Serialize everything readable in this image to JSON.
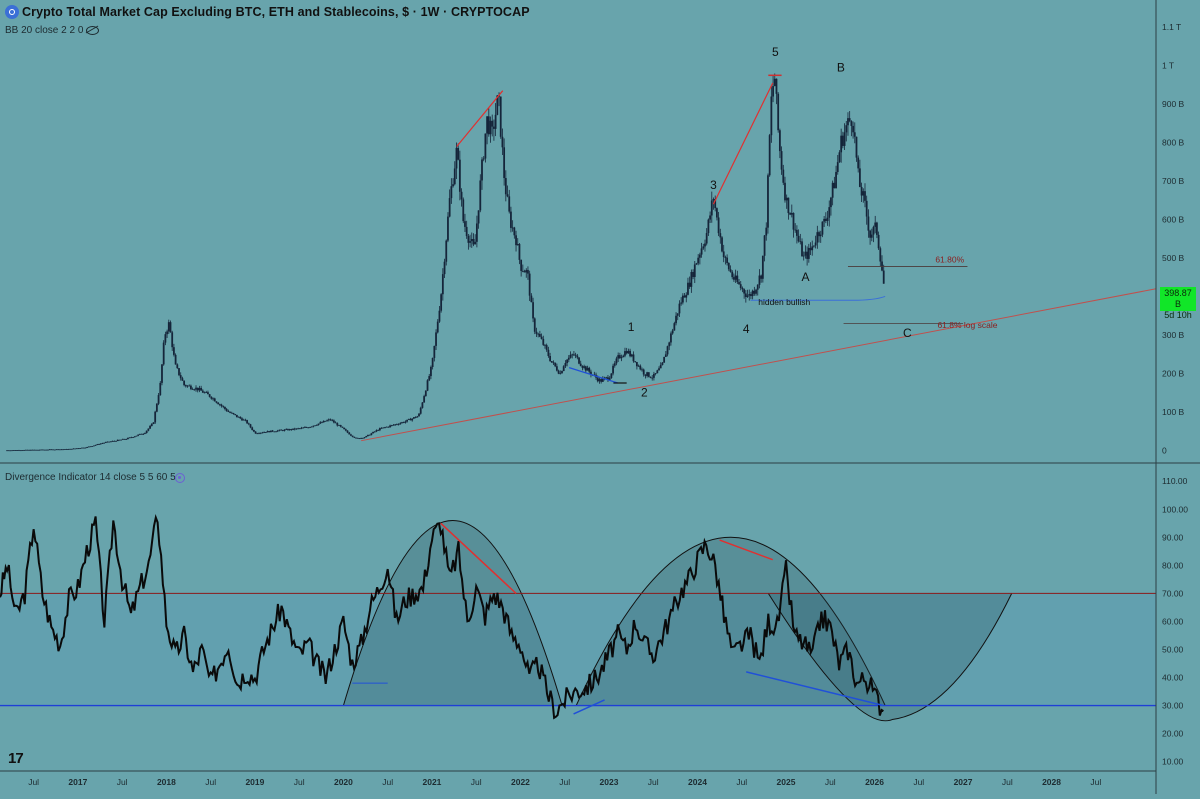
{
  "header": {
    "title": "Crypto Total Market Cap Excluding BTC, ETH and Stablecoins, $ · 1W · CRYPTOCAP",
    "indicator_label": "BB 20 close 2 2 0",
    "oscillator_label": "Divergence Indicator 14 close 5 5 60 5",
    "tv_logo": "17"
  },
  "colors": {
    "background": "#68a4ac",
    "candle": "#15253a",
    "trend_line": "#c0504d",
    "divergence_red": "#e03030",
    "divergence_blue": "#2050d8",
    "hline_red": "#8b1a1a",
    "hline_blue": "#1f3fd6",
    "price_tag": "#11e628"
  },
  "price_tag": {
    "value": "398.87 B",
    "countdown": "5d 10h"
  },
  "chart_data": [
    {
      "type": "candlestick",
      "title": "Crypto Total Market Cap Excluding BTC, ETH and Stablecoins, $ · 1W · CRYPTOCAP",
      "ylabel": "",
      "y_ticks": [
        "0",
        "100 B",
        "200 B",
        "300 B",
        "400 B",
        "500 B",
        "600 B",
        "700 B",
        "800 B",
        "900 B",
        "1 T",
        "1.1 T"
      ],
      "y_ticks_value": [
        0,
        100,
        200,
        300,
        400,
        500,
        600,
        700,
        800,
        900,
        1000,
        1100
      ],
      "ylim": [
        -20,
        1150
      ],
      "x_ticks": [
        "Jul",
        "2017",
        "Jul",
        "2018",
        "Jul",
        "2019",
        "Jul",
        "2020",
        "Jul",
        "2021",
        "Jul",
        "2022",
        "Jul",
        "2023",
        "Jul",
        "2024",
        "Jul",
        "2025",
        "Jul",
        "2026",
        "Jul",
        "2027",
        "Jul",
        "2028",
        "Jul"
      ],
      "x_ticks_value": [
        2016.5,
        2017,
        2017.5,
        2018,
        2018.5,
        2019,
        2019.5,
        2020,
        2020.5,
        2021,
        2021.5,
        2022,
        2022.5,
        2023,
        2023.5,
        2024,
        2024.5,
        2025,
        2025.5,
        2026,
        2026.5,
        2027,
        2027.5,
        2028,
        2028.5
      ],
      "xlim": [
        2016.12,
        2029.18
      ],
      "series": [
        {
          "values_x": [
            2016.2,
            2016.5,
            2016.9,
            2017.1,
            2017.3,
            2017.55,
            2017.75,
            2017.85,
            2017.93,
            2017.98,
            2018.03,
            2018.1,
            2018.2,
            2018.35,
            2018.5,
            2018.7,
            2018.9,
            2019.0,
            2019.2,
            2019.45,
            2019.6,
            2019.85,
            2020.0,
            2020.08,
            2020.15,
            2020.25,
            2020.4,
            2020.55,
            2020.7,
            2020.85,
            2021.0,
            2021.1,
            2021.2,
            2021.28,
            2021.35,
            2021.42,
            2021.48,
            2021.55,
            2021.62,
            2021.68,
            2021.75,
            2021.82,
            2021.88,
            2021.95,
            2022.0,
            2022.08,
            2022.15,
            2022.25,
            2022.35,
            2022.45,
            2022.5,
            2022.6,
            2022.7,
            2022.8,
            2022.9,
            2023.0,
            2023.1,
            2023.2,
            2023.3,
            2023.4,
            2023.5,
            2023.6,
            2023.7,
            2023.8,
            2023.9,
            2024.0,
            2024.1,
            2024.18,
            2024.22,
            2024.3,
            2024.4,
            2024.5,
            2024.58,
            2024.65,
            2024.72,
            2024.78,
            2024.83,
            2024.87,
            2024.92,
            2024.96,
            2025.0,
            2025.05,
            2025.12,
            2025.2,
            2025.28,
            2025.35,
            2025.45,
            2025.55,
            2025.62,
            2025.68,
            2025.75,
            2025.82,
            2025.88,
            2025.95,
            2026.02,
            2026.08,
            2026.12
          ],
          "values": [
            0,
            1,
            3,
            8,
            20,
            30,
            45,
            70,
            170,
            300,
            330,
            220,
            170,
            160,
            140,
            100,
            75,
            45,
            50,
            55,
            60,
            80,
            55,
            40,
            30,
            35,
            55,
            65,
            75,
            90,
            220,
            400,
            650,
            780,
            600,
            550,
            520,
            700,
            860,
            820,
            920,
            700,
            600,
            550,
            480,
            460,
            320,
            280,
            230,
            200,
            230,
            250,
            220,
            200,
            180,
            190,
            240,
            260,
            230,
            200,
            190,
            220,
            300,
            380,
            430,
            500,
            560,
            660,
            600,
            500,
            450,
            420,
            400,
            420,
            460,
            600,
            900,
            980,
            800,
            720,
            650,
            620,
            560,
            500,
            520,
            560,
            600,
            700,
            800,
            840,
            870,
            700,
            650,
            560,
            580,
            480,
            400
          ],
          "name": ""
        }
      ],
      "annotations": [
        "1",
        "2",
        "3",
        "4",
        "5",
        "A",
        "B",
        "C",
        "61.80%",
        "61.8% log scale",
        "hidden bullish"
      ]
    },
    {
      "type": "line",
      "title": "Divergence Indicator 14 close 5 5 60 5",
      "y_ticks": [
        "10.00",
        "20.00",
        "30.00",
        "40.00",
        "50.00",
        "60.00",
        "70.00",
        "80.00",
        "90.00",
        "100.00",
        "110.00"
      ],
      "y_ticks_value": [
        10,
        20,
        30,
        40,
        50,
        60,
        70,
        80,
        90,
        100,
        110
      ],
      "ylim": [
        7,
        114
      ],
      "hlines": [
        70,
        30
      ],
      "series": [
        {
          "name": "",
          "x": [
            2016.12,
            2016.2,
            2016.3,
            2016.4,
            2016.5,
            2016.6,
            2016.7,
            2016.8,
            2016.9,
            2017.0,
            2017.1,
            2017.2,
            2017.3,
            2017.4,
            2017.5,
            2017.6,
            2017.7,
            2017.8,
            2017.9,
            2018.0,
            2018.1,
            2018.2,
            2018.3,
            2018.4,
            2018.5,
            2018.6,
            2018.7,
            2018.8,
            2018.9,
            2019.0,
            2019.1,
            2019.2,
            2019.3,
            2019.4,
            2019.5,
            2019.6,
            2019.7,
            2019.8,
            2019.9,
            2020.0,
            2020.1,
            2020.2,
            2020.3,
            2020.4,
            2020.5,
            2020.6,
            2020.7,
            2020.8,
            2020.9,
            2021.0,
            2021.1,
            2021.2,
            2021.3,
            2021.4,
            2021.5,
            2021.6,
            2021.7,
            2021.8,
            2021.9,
            2022.0,
            2022.1,
            2022.2,
            2022.3,
            2022.4,
            2022.5,
            2022.6,
            2022.7,
            2022.8,
            2022.9,
            2023.0,
            2023.1,
            2023.2,
            2023.3,
            2023.4,
            2023.5,
            2023.6,
            2023.7,
            2023.8,
            2023.9,
            2024.0,
            2024.1,
            2024.2,
            2024.3,
            2024.4,
            2024.5,
            2024.6,
            2024.7,
            2024.8,
            2024.9,
            2025.0,
            2025.1,
            2025.2,
            2025.3,
            2025.4,
            2025.5,
            2025.6,
            2025.7,
            2025.8,
            2025.9,
            2026.0,
            2026.1
          ],
          "values": [
            70,
            80,
            62,
            70,
            95,
            70,
            58,
            52,
            68,
            72,
            85,
            95,
            60,
            96,
            75,
            62,
            72,
            80,
            98,
            60,
            48,
            55,
            42,
            50,
            38,
            45,
            52,
            38,
            42,
            40,
            50,
            58,
            65,
            55,
            48,
            52,
            45,
            40,
            50,
            60,
            45,
            52,
            65,
            72,
            80,
            60,
            68,
            70,
            72,
            90,
            95,
            75,
            85,
            60,
            72,
            62,
            70,
            65,
            55,
            52,
            40,
            45,
            35,
            28,
            32,
            35,
            36,
            38,
            42,
            48,
            55,
            50,
            60,
            52,
            48,
            55,
            62,
            70,
            75,
            82,
            88,
            80,
            62,
            48,
            52,
            55,
            45,
            60,
            58,
            78,
            55,
            52,
            48,
            62,
            58,
            45,
            50,
            38,
            40,
            34,
            28
          ]
        }
      ],
      "divergences": [
        {
          "color": "red",
          "x": [
            2021.1,
            2021.95
          ],
          "y": [
            95,
            70
          ]
        },
        {
          "color": "blue",
          "x": [
            2022.6,
            2022.95
          ],
          "y": [
            27,
            32
          ]
        },
        {
          "color": "red",
          "x": [
            2024.25,
            2024.85
          ],
          "y": [
            89,
            82
          ]
        },
        {
          "color": "blue",
          "x": [
            2024.55,
            2026.1
          ],
          "y": [
            42,
            30
          ]
        }
      ]
    }
  ]
}
